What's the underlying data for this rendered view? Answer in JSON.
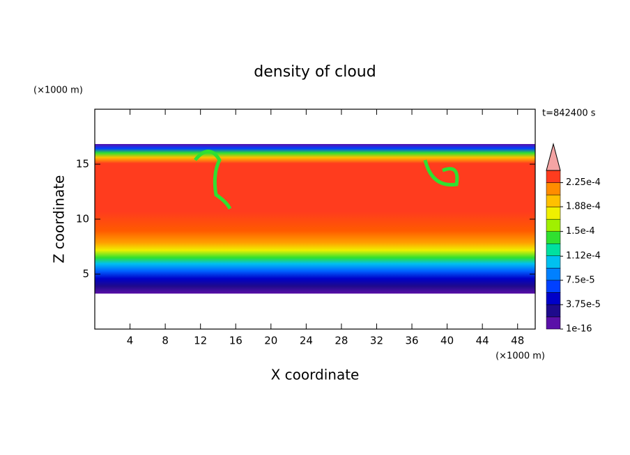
{
  "chart_data": {
    "type": "contour",
    "title": "density of cloud",
    "x_label": "X coordinate",
    "y_label": "Z coordinate",
    "x_unit": "(×1000 m)",
    "y_unit": "(×1000 m)",
    "time_label": "t=842400 s",
    "xlim": [
      0,
      50
    ],
    "xticks": [
      4,
      8,
      12,
      16,
      20,
      24,
      28,
      32,
      36,
      40,
      44,
      48
    ],
    "ylim": [
      0,
      20
    ],
    "yticks": [
      5,
      10,
      15
    ],
    "colorbar": {
      "lim": [
        1e-16,
        0.00024375
      ],
      "ticks": [
        {
          "value": 1e-16,
          "label": "1e-16"
        },
        {
          "value": 3.75e-05,
          "label": "3.75e-5"
        },
        {
          "value": 7.5e-05,
          "label": "7.5e-5"
        },
        {
          "value": 0.000112,
          "label": "1.12e-4"
        },
        {
          "value": 0.00015,
          "label": "1.5e-4"
        },
        {
          "value": 0.000188,
          "label": "1.88e-4"
        },
        {
          "value": 0.000225,
          "label": "2.25e-4"
        }
      ],
      "colors": [
        "#5a10a8",
        "#1e0a8c",
        "#0000c8",
        "#0040ff",
        "#0080ff",
        "#00c0f0",
        "#00e0a0",
        "#30e030",
        "#a0f000",
        "#f0f000",
        "#ffc000",
        "#ff8c00",
        "#ff3c1e"
      ],
      "extend_color": "#f4a4a4"
    }
  }
}
